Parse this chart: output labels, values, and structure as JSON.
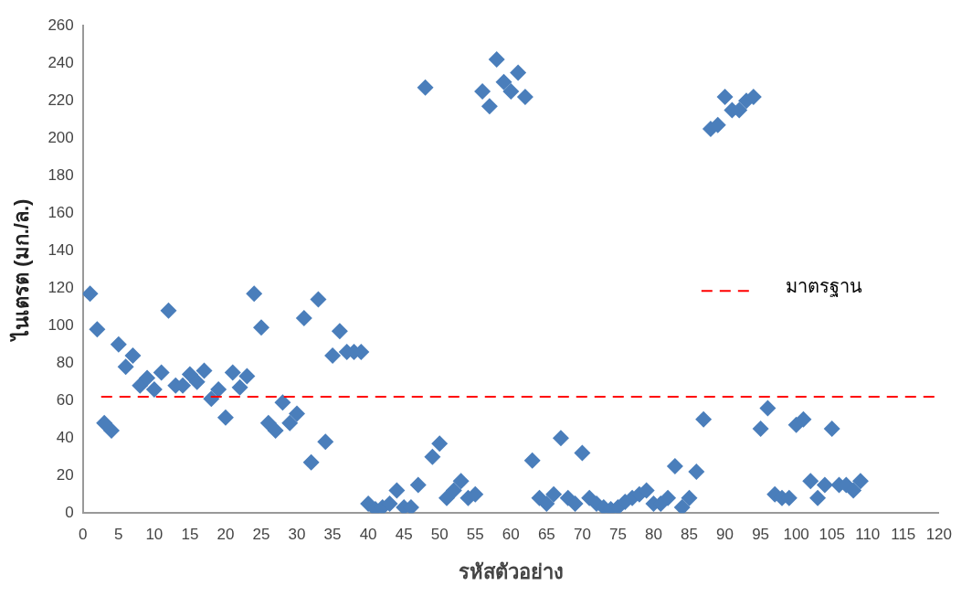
{
  "chart_data": {
    "type": "scatter",
    "xlabel": "รหัสตัวอย่าง",
    "ylabel": "ไนเตรต (มก./ล.)",
    "x": [
      1,
      2,
      3,
      4,
      5,
      6,
      7,
      8,
      9,
      10,
      11,
      12,
      13,
      14,
      15,
      16,
      17,
      18,
      19,
      20,
      21,
      22,
      23,
      24,
      25,
      26,
      27,
      28,
      29,
      30,
      31,
      32,
      33,
      34,
      35,
      36,
      37,
      38,
      39,
      40,
      41,
      42,
      43,
      44,
      45,
      46,
      47,
      48,
      49,
      50,
      51,
      52,
      53,
      54,
      55,
      56,
      57,
      58,
      59,
      60,
      61,
      62,
      63,
      64,
      65,
      66,
      67,
      68,
      69,
      70,
      71,
      72,
      73,
      74,
      75,
      76,
      77,
      78,
      79,
      80,
      81,
      82,
      83,
      84,
      85,
      86,
      87,
      88,
      89,
      90,
      91,
      92,
      93,
      94,
      95,
      96,
      97,
      98,
      99,
      100,
      101,
      102,
      103,
      104,
      105,
      106,
      107,
      108,
      109
    ],
    "series": [
      {
        "color": "#4a7ebb",
        "values": [
          117,
          98,
          48,
          44,
          90,
          78,
          84,
          68,
          72,
          66,
          75,
          108,
          68,
          68,
          74,
          70,
          76,
          61,
          66,
          51,
          75,
          67,
          73,
          117,
          99,
          48,
          44,
          59,
          48,
          53,
          104,
          27,
          114,
          38,
          84,
          97,
          86,
          86,
          86,
          5,
          2,
          3,
          5,
          12,
          3,
          3,
          15,
          227,
          30,
          37,
          8,
          12,
          17,
          8,
          10,
          225,
          217,
          242,
          230,
          225,
          235,
          222,
          28,
          8,
          5,
          10,
          40,
          8,
          5,
          32,
          8,
          5,
          3,
          2,
          3,
          6,
          8,
          10,
          12,
          5,
          5,
          8,
          25,
          3,
          8,
          22,
          50,
          205,
          207,
          222,
          215,
          215,
          220,
          222,
          45,
          56,
          10,
          8,
          8,
          47,
          50,
          17,
          8,
          15,
          45,
          15,
          15,
          12,
          17
        ]
      }
    ],
    "marker": "diamond",
    "grid": false,
    "legend": "right",
    "xlim": [
      0,
      120
    ],
    "xticks": [
      0,
      5,
      10,
      15,
      20,
      25,
      30,
      35,
      40,
      45,
      50,
      55,
      60,
      65,
      70,
      75,
      80,
      85,
      90,
      95,
      100,
      105,
      110,
      115,
      120
    ],
    "ylim": [
      0,
      260
    ],
    "yticks": [
      0,
      20,
      40,
      60,
      80,
      100,
      120,
      140,
      160,
      180,
      200,
      220,
      240,
      260
    ],
    "ref_lines": [
      {
        "axis": "y",
        "value": 62,
        "label": "มาตรฐาน",
        "color": "#ff0000",
        "line_style": "dashed"
      }
    ]
  }
}
